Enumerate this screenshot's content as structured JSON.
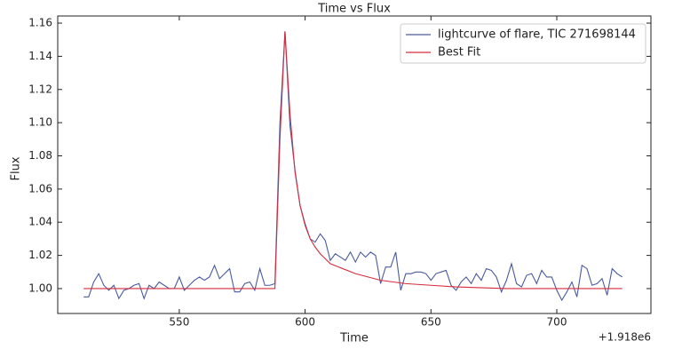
{
  "chart_data": {
    "type": "line",
    "title": "Time vs Flux",
    "xlabel": "Time",
    "ylabel": "Flux",
    "x_offset_label": "+1.918e6",
    "series": [
      {
        "name": "lightcurve of flare, TIC 271698144",
        "color": "#4a5a9c",
        "x": [
          512,
          514,
          516,
          518,
          520,
          522,
          524,
          526,
          528,
          530,
          532,
          534,
          536,
          538,
          540,
          542,
          544,
          546,
          548,
          550,
          552,
          554,
          556,
          558,
          560,
          562,
          564,
          566,
          568,
          570,
          572,
          574,
          576,
          578,
          580,
          582,
          584,
          586,
          588,
          590,
          592,
          594,
          596,
          598,
          600,
          602,
          604,
          606,
          608,
          610,
          612,
          614,
          616,
          618,
          620,
          622,
          624,
          626,
          628,
          630,
          632,
          634,
          636,
          638,
          640,
          642,
          644,
          646,
          648,
          650,
          652,
          654,
          656,
          658,
          660,
          662,
          664,
          666,
          668,
          670,
          672,
          674,
          676,
          678,
          680,
          682,
          684,
          686,
          688,
          690,
          692,
          694,
          696,
          698,
          700,
          702,
          704,
          706,
          708,
          710,
          712,
          714,
          716,
          718,
          720,
          722,
          724,
          726
        ],
        "values": [
          0.995,
          0.995,
          1.004,
          1.009,
          1.002,
          0.999,
          1.002,
          0.994,
          0.999,
          1.0,
          1.002,
          1.003,
          0.994,
          1.002,
          1.0,
          1.004,
          1.002,
          1.0,
          1.0,
          1.007,
          0.999,
          1.002,
          1.005,
          1.007,
          1.005,
          1.007,
          1.014,
          1.006,
          1.009,
          1.012,
          0.998,
          0.998,
          1.003,
          1.004,
          0.999,
          1.012,
          1.002,
          1.002,
          1.003,
          1.1,
          1.155,
          1.098,
          1.071,
          1.05,
          1.039,
          1.03,
          1.028,
          1.033,
          1.029,
          1.017,
          1.021,
          1.019,
          1.017,
          1.022,
          1.016,
          1.022,
          1.019,
          1.022,
          1.02,
          1.003,
          1.013,
          1.013,
          1.022,
          0.999,
          1.009,
          1.009,
          1.01,
          1.01,
          1.009,
          1.005,
          1.009,
          1.01,
          1.011,
          1.002,
          0.999,
          1.004,
          1.007,
          1.003,
          1.009,
          1.005,
          1.012,
          1.011,
          1.007,
          0.998,
          1.005,
          1.015,
          1.003,
          1.001,
          1.008,
          1.009,
          1.003,
          1.011,
          1.007,
          1.007,
          0.999,
          0.993,
          0.998,
          1.004,
          0.995,
          1.014,
          1.012,
          1.002,
          1.003,
          1.006,
          0.996,
          1.012,
          1.009,
          1.007
        ]
      },
      {
        "name": "Best Fit",
        "color": "#d62b3e",
        "x": [
          512,
          588,
          590,
          592,
          594,
          596,
          598,
          600,
          602,
          604,
          606,
          608,
          610,
          615,
          620,
          625,
          630,
          640,
          650,
          660,
          680,
          726
        ],
        "values": [
          1.0,
          1.0,
          1.09,
          1.155,
          1.105,
          1.07,
          1.05,
          1.038,
          1.03,
          1.025,
          1.021,
          1.018,
          1.015,
          1.012,
          1.009,
          1.007,
          1.005,
          1.003,
          1.002,
          1.001,
          1.0,
          1.0
        ]
      }
    ],
    "xlim": [
      501.7,
      737.4
    ],
    "xticks": [
      550,
      600,
      650,
      700
    ],
    "ylim": [
      0.985,
      1.1643
    ],
    "yticks": [
      {
        "value": 1.0,
        "label": "1.00"
      },
      {
        "value": 1.02,
        "label": "1.02"
      },
      {
        "value": 1.04,
        "label": "1.04"
      },
      {
        "value": 1.06,
        "label": "1.06"
      },
      {
        "value": 1.08,
        "label": "1.08"
      },
      {
        "value": 1.1,
        "label": "1.10"
      },
      {
        "value": 1.12,
        "label": "1.12"
      },
      {
        "value": 1.14,
        "label": "1.14"
      },
      {
        "value": 1.16,
        "label": "1.16"
      }
    ],
    "grid": false,
    "legend": "upper right"
  }
}
